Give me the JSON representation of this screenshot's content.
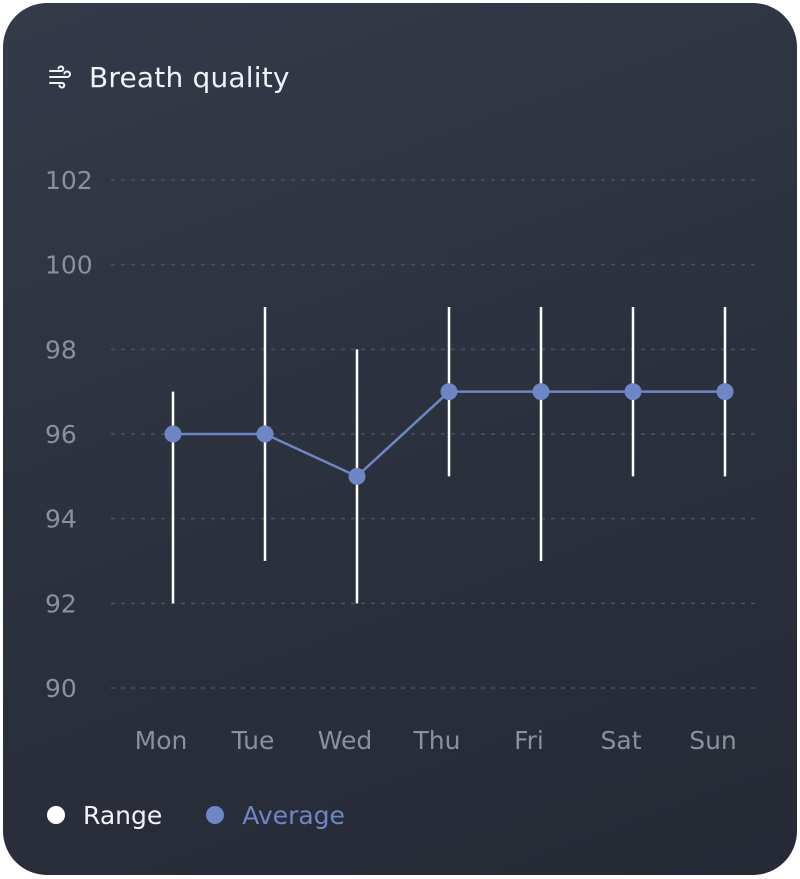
{
  "header": {
    "title": "Breath quality",
    "icon": "wind-icon"
  },
  "legend": {
    "range_label": "Range",
    "average_label": "Average"
  },
  "colors": {
    "card_background": "#2d3240",
    "range": "#ffffff",
    "average": "#6f86c6",
    "tick_text": "#8b909b",
    "grid": "#4a5060"
  },
  "chart_data": {
    "type": "line",
    "title": "Breath quality",
    "categories": [
      "Mon",
      "Tue",
      "Wed",
      "Thu",
      "Fri",
      "Sat",
      "Sun"
    ],
    "y_ticks": [
      "90",
      "92",
      "94",
      "96",
      "98",
      "100",
      "102"
    ],
    "ylim": [
      90,
      102
    ],
    "grid": true,
    "legend_position": "bottom-left",
    "series": [
      {
        "name": "Average",
        "kind": "line",
        "values": [
          96,
          96,
          95,
          97,
          97,
          97,
          97
        ]
      },
      {
        "name": "Range",
        "kind": "range",
        "low": [
          92,
          93,
          92,
          95,
          93,
          95,
          95
        ],
        "high": [
          97,
          99,
          98,
          99,
          99,
          99,
          99
        ]
      }
    ]
  }
}
